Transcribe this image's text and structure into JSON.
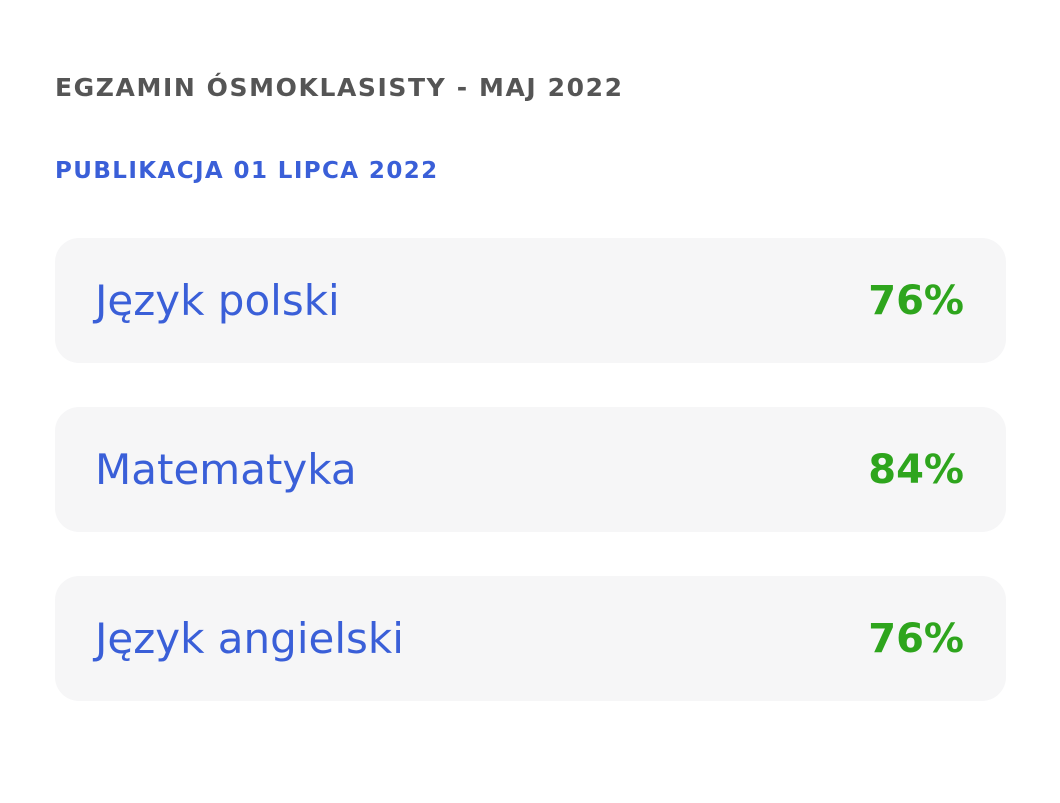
{
  "header": {
    "exam_title": "EGZAMIN ÓSMOKLASISTY - MAJ 2022",
    "publication_date": "PUBLIKACJA 01 LIPCA 2022"
  },
  "results": [
    {
      "subject": "Język polski",
      "score": "76%"
    },
    {
      "subject": "Matematyka",
      "score": "84%"
    },
    {
      "subject": "Język angielski",
      "score": "76%"
    }
  ],
  "colors": {
    "title": "#555555",
    "accent_blue": "#3a5fd8",
    "score_green": "#2ea51d",
    "card_background": "#f6f6f7"
  }
}
